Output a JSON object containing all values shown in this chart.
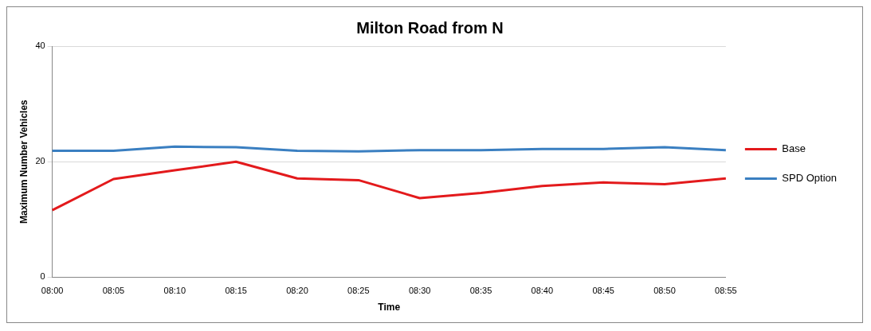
{
  "chart_data": {
    "type": "line",
    "title": "Milton Road from N",
    "xlabel": "Time",
    "ylabel": "Maximum Number Vehicles",
    "categories": [
      "08:00",
      "08:05",
      "08:10",
      "08:15",
      "08:20",
      "08:25",
      "08:30",
      "08:35",
      "08:40",
      "08:45",
      "08:50",
      "08:55"
    ],
    "series": [
      {
        "name": "Base",
        "color": "#e31a1c",
        "values": [
          11.6,
          17.0,
          18.5,
          20.0,
          17.1,
          16.8,
          13.7,
          14.6,
          15.8,
          16.4,
          16.1,
          17.1
        ]
      },
      {
        "name": "SPD Option",
        "color": "#3a7fc1",
        "values": [
          21.9,
          21.9,
          22.6,
          22.5,
          21.9,
          21.8,
          22.0,
          22.0,
          22.2,
          22.2,
          22.5,
          22.0
        ]
      }
    ],
    "ylim": [
      0,
      40
    ],
    "yticks": [
      0,
      20,
      40
    ],
    "grid": "y",
    "legend": "right",
    "marker": "none",
    "line_style": "solid"
  }
}
